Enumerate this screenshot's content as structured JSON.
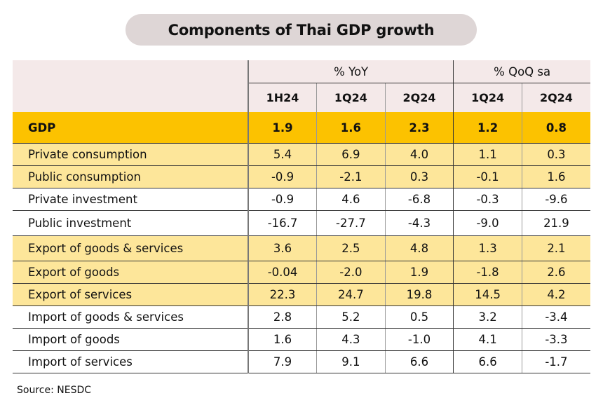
{
  "title": "Components of Thai GDP growth",
  "header": {
    "groups": [
      {
        "label": "% YoY",
        "columns": [
          "1H24",
          "1Q24",
          "2Q24"
        ]
      },
      {
        "label": "% QoQ sa",
        "columns": [
          "1Q24",
          "2Q24"
        ]
      }
    ]
  },
  "rows": [
    {
      "label": "GDP",
      "values": [
        "1.9",
        "1.6",
        "2.3",
        "1.2",
        "0.8"
      ],
      "style": "total"
    },
    {
      "label": "Private consumption",
      "values": [
        "5.4",
        "6.9",
        "4.0",
        "1.1",
        "0.3"
      ],
      "style": "highlight"
    },
    {
      "label": "Public consumption",
      "values": [
        "-0.9",
        "-2.1",
        "0.3",
        "-0.1",
        "1.6"
      ],
      "style": "highlight"
    },
    {
      "label": "Private investment",
      "values": [
        "-0.9",
        "4.6",
        "-6.8",
        "-0.3",
        "-9.6"
      ],
      "style": "plain"
    },
    {
      "label": "Public investment",
      "values": [
        "-16.7",
        "-27.7",
        "-4.3",
        "-9.0",
        "21.9"
      ],
      "style": "plain"
    },
    {
      "label": "Export of goods & services",
      "values": [
        "3.6",
        "2.5",
        "4.8",
        "1.3",
        "2.1"
      ],
      "style": "highlight"
    },
    {
      "label": "Export of goods",
      "values": [
        "-0.04",
        "-2.0",
        "1.9",
        "-1.8",
        "2.6"
      ],
      "style": "highlight"
    },
    {
      "label": "Export of services",
      "values": [
        "22.3",
        "24.7",
        "19.8",
        "14.5",
        "4.2"
      ],
      "style": "highlight"
    },
    {
      "label": "Import of goods & services",
      "values": [
        "2.8",
        "5.2",
        "0.5",
        "3.2",
        "-3.4"
      ],
      "style": "plain"
    },
    {
      "label": "Import of goods",
      "values": [
        "1.6",
        "4.3",
        "-1.0",
        "4.1",
        "-3.3"
      ],
      "style": "plain"
    },
    {
      "label": "Import of services",
      "values": [
        "7.9",
        "9.1",
        "6.6",
        "6.6",
        "-1.7"
      ],
      "style": "plain"
    }
  ],
  "colors": {
    "title_pill": "#ded6d6",
    "header_bg": "#f4e9e9",
    "total_row": "#fcc200",
    "highlight_row": "#fde69a",
    "plain_row": "#ffffff"
  },
  "source": "Source: NESDC"
}
